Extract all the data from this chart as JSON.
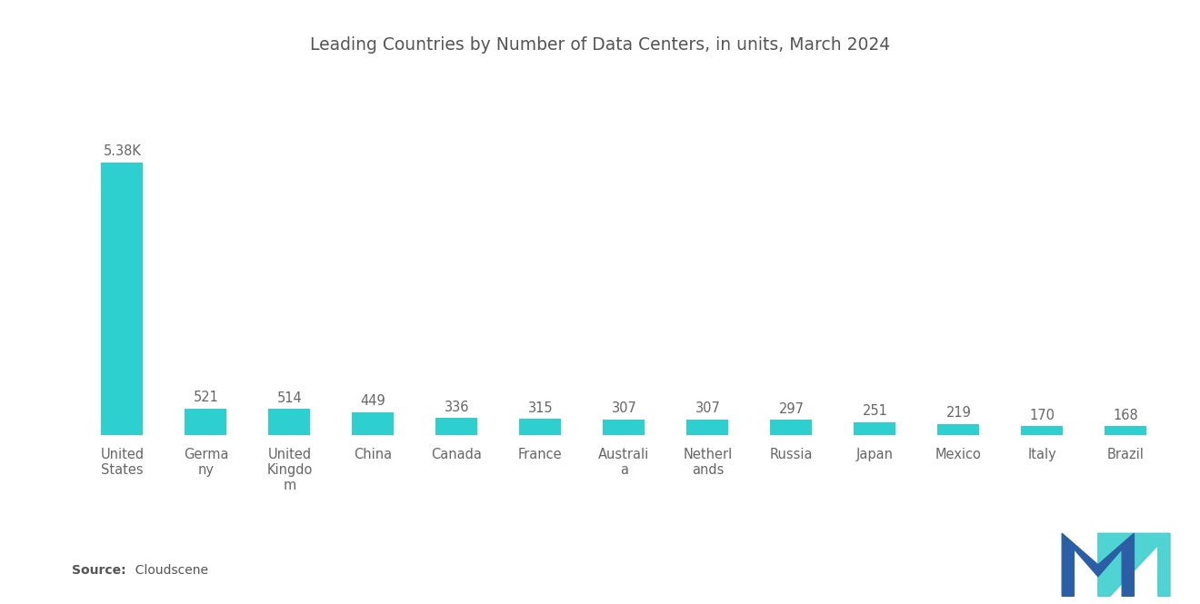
{
  "title": "Leading Countries by Number of Data Centers, in units, March 2024",
  "categories": [
    "United\nStates",
    "Germa\nny",
    "United\nKingdo\nm",
    "China",
    "Canada",
    "France",
    "Australi\na",
    "Netherl\nands",
    "Russia",
    "Japan",
    "Mexico",
    "Italy",
    "Brazil"
  ],
  "values": [
    5380,
    521,
    514,
    449,
    336,
    315,
    307,
    307,
    297,
    251,
    219,
    170,
    168
  ],
  "labels": [
    "5.38K",
    "521",
    "514",
    "449",
    "336",
    "315",
    "307",
    "307",
    "297",
    "251",
    "219",
    "170",
    "168"
  ],
  "bar_color": "#2ECFCF",
  "background_color": "#ffffff",
  "source_bold": "Source:",
  "source_text": "  Cloudscene",
  "title_fontsize": 13.5,
  "label_fontsize": 10.5,
  "tick_fontsize": 10.5,
  "ylim": [
    0,
    6200
  ],
  "logo_dark_blue": "#2B5FA5",
  "logo_teal": "#3DCFCF"
}
